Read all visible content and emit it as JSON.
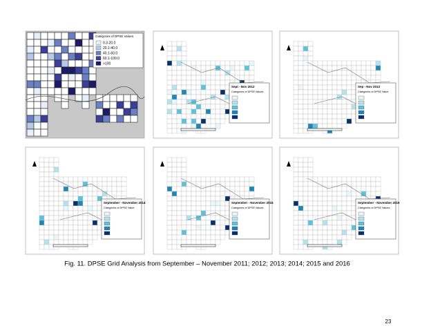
{
  "maps": [
    {
      "legend_title": "Categories of DPSE Values",
      "legend_labels": [
        "0.3-20.0",
        "20.1-40.0",
        "40.1-60.0",
        "60.1-100.0",
        ">100"
      ]
    },
    {
      "title": "Sept - Nov 2012",
      "legend_title": "Categories of DPSE Values"
    },
    {
      "title": "Sep - Nov 2013",
      "legend_title": "Categories of DPSE Value"
    },
    {
      "title": "September - November 2014",
      "legend_title": "Categories of DPSE Value"
    },
    {
      "title": "September - November 2015",
      "legend_title": "Categories of DPSE Values"
    },
    {
      "title": "September - November 2016",
      "legend_title": "Categories of DPSE Values"
    }
  ],
  "caption": "Fig. 11. DPSE Grid Analysis from September – November 2011; 2012; 2013; 2014; 2015 and 2016",
  "page_number": "23"
}
